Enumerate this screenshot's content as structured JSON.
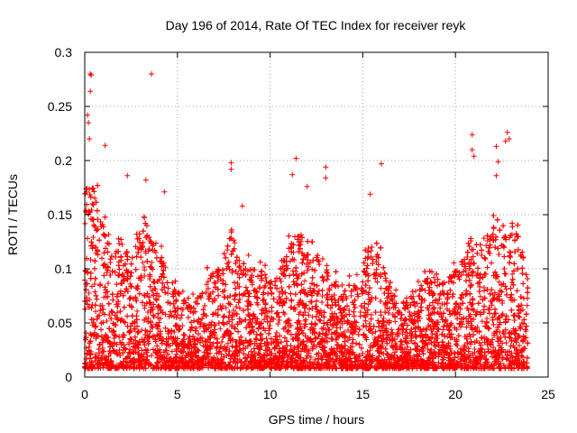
{
  "chart_data": {
    "type": "scatter",
    "title": "Day 196 of 2014, Rate Of TEC Index for receiver reyk",
    "xlabel": "GPS time / hours",
    "ylabel": "ROTI / TECUs",
    "xlim": [
      0,
      25
    ],
    "ylim": [
      0,
      0.3
    ],
    "xticks": [
      0,
      5,
      10,
      15,
      20,
      25
    ],
    "yticks": [
      0,
      0.05,
      0.1,
      0.15,
      0.2,
      0.25,
      0.3
    ],
    "xtick_labels": [
      "0",
      "5",
      "10",
      "15",
      "20",
      "25"
    ],
    "ytick_labels": [
      "0",
      "0.05",
      "0.1",
      "0.15",
      "0.2",
      "0.25",
      "0.3"
    ],
    "grid": true,
    "marker": "+",
    "color": "#ff0000",
    "x_extent": [
      0,
      23.9
    ],
    "highlight_points": [
      {
        "x": 0.3,
        "y": 0.28
      },
      {
        "x": 0.35,
        "y": 0.279
      },
      {
        "x": 0.3,
        "y": 0.264
      },
      {
        "x": 0.15,
        "y": 0.242
      },
      {
        "x": 0.2,
        "y": 0.235
      },
      {
        "x": 0.25,
        "y": 0.22
      },
      {
        "x": 3.6,
        "y": 0.28
      },
      {
        "x": 1.1,
        "y": 0.214
      },
      {
        "x": 2.3,
        "y": 0.186
      },
      {
        "x": 3.3,
        "y": 0.182
      },
      {
        "x": 4.3,
        "y": 0.171
      },
      {
        "x": 7.9,
        "y": 0.198
      },
      {
        "x": 7.9,
        "y": 0.192
      },
      {
        "x": 8.5,
        "y": 0.158
      },
      {
        "x": 11.4,
        "y": 0.202
      },
      {
        "x": 11.2,
        "y": 0.187
      },
      {
        "x": 12.0,
        "y": 0.176
      },
      {
        "x": 13.0,
        "y": 0.194
      },
      {
        "x": 13.0,
        "y": 0.184
      },
      {
        "x": 15.4,
        "y": 0.169
      },
      {
        "x": 16.0,
        "y": 0.197
      },
      {
        "x": 20.9,
        "y": 0.224
      },
      {
        "x": 20.9,
        "y": 0.21
      },
      {
        "x": 21.0,
        "y": 0.204
      },
      {
        "x": 22.2,
        "y": 0.213
      },
      {
        "x": 22.3,
        "y": 0.199
      },
      {
        "x": 22.2,
        "y": 0.186
      },
      {
        "x": 22.8,
        "y": 0.226
      },
      {
        "x": 22.9,
        "y": 0.22
      },
      {
        "x": 22.7,
        "y": 0.218
      }
    ],
    "envelope": {
      "hours": [
        0,
        0.5,
        1,
        1.5,
        2,
        2.5,
        3,
        3.5,
        4,
        4.5,
        5,
        5.5,
        6,
        6.5,
        7,
        7.5,
        8,
        8.5,
        9,
        9.5,
        10,
        10.5,
        11,
        11.5,
        12,
        12.5,
        13,
        13.5,
        14,
        14.5,
        15,
        15.5,
        16,
        16.5,
        17,
        17.5,
        18,
        18.5,
        19,
        19.5,
        20,
        20.5,
        21,
        21.5,
        22,
        22.5,
        23,
        23.5,
        23.9
      ],
      "typical_max": [
        0.16,
        0.18,
        0.14,
        0.12,
        0.13,
        0.12,
        0.14,
        0.13,
        0.12,
        0.1,
        0.08,
        0.07,
        0.07,
        0.09,
        0.1,
        0.11,
        0.13,
        0.11,
        0.1,
        0.1,
        0.09,
        0.1,
        0.12,
        0.13,
        0.12,
        0.11,
        0.1,
        0.09,
        0.08,
        0.09,
        0.12,
        0.12,
        0.11,
        0.08,
        0.07,
        0.07,
        0.09,
        0.1,
        0.09,
        0.09,
        0.1,
        0.11,
        0.13,
        0.12,
        0.14,
        0.13,
        0.13,
        0.13,
        0.1
      ]
    }
  }
}
